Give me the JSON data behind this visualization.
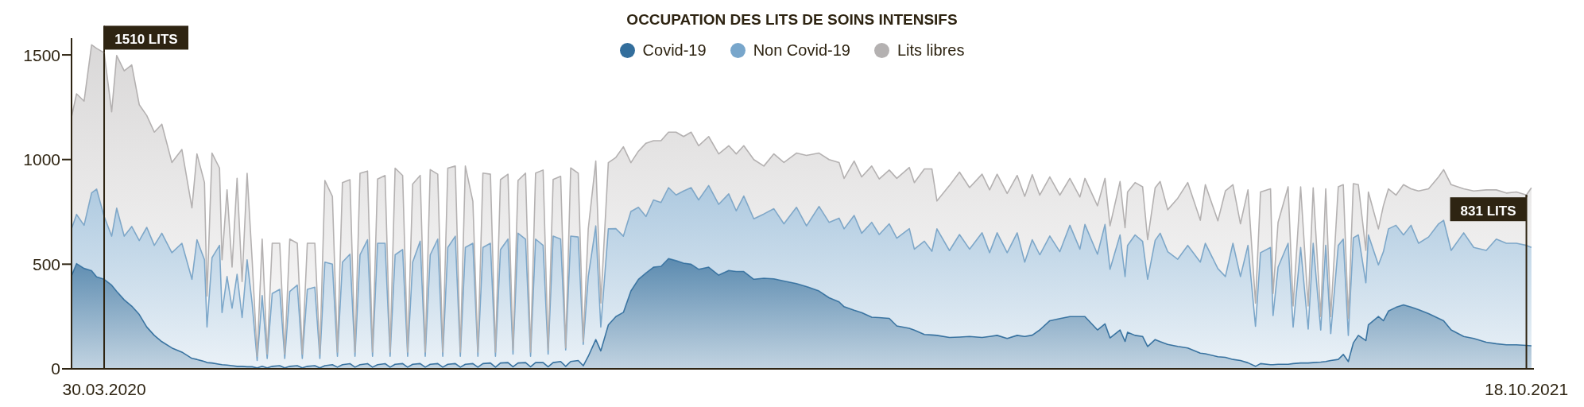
{
  "chart_data": {
    "type": "area",
    "stacked": true,
    "title": "OCCUPATION DES LITS DE SOINS INTENSIFS",
    "legend": "top",
    "xlim": [
      "2020-03-17",
      "2021-10-21"
    ],
    "xticks": [
      {
        "value": "2020-03-30",
        "label": "30.03.2020"
      },
      {
        "value": "2021-10-18",
        "label": "18.10.2021"
      }
    ],
    "ylim": [
      0,
      1580
    ],
    "yticks": [
      0,
      500,
      1000,
      1500
    ],
    "annotations": [
      {
        "text": "1510 LITS",
        "x": "2020-03-30",
        "y": 1510
      },
      {
        "text": "831 LITS",
        "x": "2021-10-18",
        "y": 831
      }
    ],
    "x": [
      "2020-03-17",
      "2020-03-19",
      "2020-03-22",
      "2020-03-25",
      "2020-03-27",
      "2020-03-30",
      "2020-04-02",
      "2020-04-04",
      "2020-04-07",
      "2020-04-10",
      "2020-04-13",
      "2020-04-16",
      "2020-04-19",
      "2020-04-22",
      "2020-04-26",
      "2020-04-30",
      "2020-05-04",
      "2020-05-06",
      "2020-05-09",
      "2020-05-10",
      "2020-05-12",
      "2020-05-15",
      "2020-05-16",
      "2020-05-18",
      "2020-05-20",
      "2020-05-22",
      "2020-05-24",
      "2020-05-26",
      "2020-05-28",
      "2020-05-30",
      "2020-06-01",
      "2020-06-03",
      "2020-06-05",
      "2020-06-08",
      "2020-06-10",
      "2020-06-12",
      "2020-06-15",
      "2020-06-17",
      "2020-06-19",
      "2020-06-22",
      "2020-06-24",
      "2020-06-26",
      "2020-06-29",
      "2020-07-01",
      "2020-07-03",
      "2020-07-06",
      "2020-07-08",
      "2020-07-10",
      "2020-07-13",
      "2020-07-15",
      "2020-07-17",
      "2020-07-20",
      "2020-07-22",
      "2020-07-24",
      "2020-07-27",
      "2020-07-29",
      "2020-07-31",
      "2020-08-03",
      "2020-08-05",
      "2020-08-07",
      "2020-08-10",
      "2020-08-12",
      "2020-08-14",
      "2020-08-17",
      "2020-08-19",
      "2020-08-21",
      "2020-08-24",
      "2020-08-26",
      "2020-08-28",
      "2020-08-31",
      "2020-09-02",
      "2020-09-04",
      "2020-09-07",
      "2020-09-09",
      "2020-09-11",
      "2020-09-14",
      "2020-09-16",
      "2020-09-18",
      "2020-09-21",
      "2020-09-23",
      "2020-09-25",
      "2020-09-28",
      "2020-09-30",
      "2020-10-02",
      "2020-10-05",
      "2020-10-07",
      "2020-10-09",
      "2020-10-12",
      "2020-10-14",
      "2020-10-17",
      "2020-10-20",
      "2020-10-23",
      "2020-10-26",
      "2020-10-29",
      "2020-11-01",
      "2020-11-04",
      "2020-11-07",
      "2020-11-10",
      "2020-11-13",
      "2020-11-16",
      "2020-11-19",
      "2020-11-22",
      "2020-11-26",
      "2020-11-30",
      "2020-12-04",
      "2020-12-07",
      "2020-12-10",
      "2020-12-14",
      "2020-12-18",
      "2020-12-22",
      "2020-12-26",
      "2020-12-31",
      "2021-01-04",
      "2021-01-09",
      "2021-01-13",
      "2021-01-17",
      "2021-01-19",
      "2021-01-23",
      "2021-01-26",
      "2021-01-30",
      "2021-02-02",
      "2021-02-06",
      "2021-02-09",
      "2021-02-14",
      "2021-02-16",
      "2021-02-20",
      "2021-02-23",
      "2021-02-25",
      "2021-03-02",
      "2021-03-06",
      "2021-03-10",
      "2021-03-15",
      "2021-03-18",
      "2021-03-21",
      "2021-03-25",
      "2021-03-29",
      "2021-04-01",
      "2021-04-04",
      "2021-04-07",
      "2021-04-11",
      "2021-04-15",
      "2021-04-19",
      "2021-04-23",
      "2021-04-25",
      "2021-04-30",
      "2021-05-03",
      "2021-05-05",
      "2021-05-09",
      "2021-05-11",
      "2021-05-12",
      "2021-05-15",
      "2021-05-18",
      "2021-05-20",
      "2021-05-23",
      "2021-05-25",
      "2021-05-28",
      "2021-06-01",
      "2021-06-05",
      "2021-06-10",
      "2021-06-12",
      "2021-06-17",
      "2021-06-20",
      "2021-06-23",
      "2021-06-26",
      "2021-06-29",
      "2021-07-02",
      "2021-07-04",
      "2021-07-08",
      "2021-07-09",
      "2021-07-11",
      "2021-07-15",
      "2021-07-17",
      "2021-07-20",
      "2021-07-23",
      "2021-07-25",
      "2021-07-28",
      "2021-07-30",
      "2021-08-01",
      "2021-08-04",
      "2021-08-06",
      "2021-08-08",
      "2021-08-10",
      "2021-08-12",
      "2021-08-15",
      "2021-08-16",
      "2021-08-20",
      "2021-08-22",
      "2021-08-24",
      "2021-08-27",
      "2021-08-30",
      "2021-09-02",
      "2021-09-05",
      "2021-09-09",
      "2021-09-13",
      "2021-09-15",
      "2021-09-18",
      "2021-09-23",
      "2021-09-27",
      "2021-10-02",
      "2021-10-06",
      "2021-10-10",
      "2021-10-14",
      "2021-10-18",
      "2021-10-20"
    ],
    "series": [
      {
        "name": "Covid-19",
        "color": "#336e9c",
        "values": [
          445,
          503,
          480,
          469,
          440,
          428,
          400,
          370,
          330,
          300,
          260,
          200,
          160,
          130,
          100,
          80,
          50,
          45,
          35,
          30,
          28,
          22,
          20,
          18,
          15,
          12,
          12,
          10,
          10,
          5,
          12,
          5,
          12,
          15,
          5,
          12,
          15,
          5,
          12,
          15,
          5,
          15,
          20,
          8,
          20,
          25,
          8,
          20,
          25,
          8,
          20,
          25,
          8,
          22,
          25,
          8,
          22,
          25,
          8,
          22,
          25,
          8,
          22,
          25,
          8,
          22,
          25,
          8,
          25,
          28,
          8,
          28,
          30,
          10,
          28,
          30,
          10,
          30,
          30,
          10,
          30,
          35,
          12,
          35,
          40,
          15,
          60,
          140,
          86,
          210,
          250,
          270,
          372,
          428,
          458,
          486,
          490,
          527,
          517,
          505,
          500,
          476,
          486,
          448,
          470,
          465,
          465,
          428,
          433,
          430,
          420,
          407,
          393,
          372,
          340,
          320,
          297,
          280,
          269,
          247,
          245,
          241,
          205,
          194,
          185,
          164,
          162,
          160,
          150,
          152,
          155,
          150,
          155,
          160,
          145,
          160,
          155,
          161,
          186,
          230,
          240,
          250,
          250,
          250,
          186,
          215,
          148,
          186,
          131,
          175,
          160,
          155,
          107,
          140,
          130,
          117,
          107,
          100,
          75,
          72,
          58,
          55,
          45,
          40,
          29,
          12,
          25,
          20,
          20,
          22,
          22,
          25,
          28,
          28,
          30,
          32,
          35,
          40,
          45,
          69,
          35,
          124,
          160,
          135,
          210,
          250,
          230,
          276,
          294,
          306,
          295,
          283,
          264,
          241,
          230,
          186,
          155,
          145,
          127,
          120,
          115,
          115,
          112,
          110
        ]
      },
      {
        "name": "Non Covid-19",
        "color": "#78a6cb",
        "values": [
          224,
          235,
          206,
          372,
          419,
          300,
          234,
          398,
          304,
          380,
          353,
          476,
          430,
          518,
          455,
          520,
          378,
          572,
          486,
          170,
          503,
          568,
          249,
          423,
          275,
          440,
          233,
          511,
          304,
          35,
          338,
          45,
          348,
          365,
          45,
          358,
          385,
          45,
          368,
          375,
          45,
          495,
          480,
          52,
          490,
          523,
          52,
          525,
          592,
          52,
          580,
          575,
          52,
          523,
          545,
          52,
          488,
          585,
          52,
          523,
          595,
          52,
          558,
          609,
          52,
          558,
          575,
          52,
          555,
          572,
          52,
          542,
          590,
          60,
          620,
          590,
          50,
          590,
          560,
          60,
          604,
          585,
          78,
          599,
          590,
          102,
          381,
          543,
          114,
          459,
          420,
          364,
          380,
          344,
          270,
          321,
          305,
          339,
          314,
          345,
          366,
          331,
          390,
          338,
          366,
          290,
          361,
          289,
          307,
          335,
          273,
          365,
          290,
          404,
          360,
          400,
          372,
          453,
          379,
          453,
          397,
          452,
          419,
          476,
          387,
          446,
          400,
          509,
          415,
          490,
          417,
          500,
          400,
          490,
          410,
          490,
          355,
          456,
          359,
          405,
          320,
          436,
          322,
          440,
          362,
          475,
          328,
          454,
          310,
          415,
          480,
          454,
          321,
          474,
          518,
          443,
          417,
          490,
          435,
          528,
          421,
          386,
          555,
          401,
          561,
          191,
          530,
          560,
          235,
          464,
          578,
          175,
          552,
          162,
          570,
          153,
          555,
          128,
          545,
          551,
          125,
          502,
          480,
          276,
          430,
          247,
          330,
          393,
          392,
          334,
          391,
          317,
          366,
          452,
          480,
          380,
          495,
          435,
          439,
          500,
          485,
          485,
          478,
          470
        ]
      },
      {
        "name": "Lits libres",
        "color": "#b4b1b1",
        "values": [
          534,
          576,
          593,
          707,
          672,
          782,
          594,
          729,
          790,
          772,
          649,
          534,
          541,
          521,
          431,
          448,
          341,
          410,
          369,
          148,
          500,
          369,
          252,
          414,
          196,
          458,
          172,
          413,
          207,
          20,
          270,
          20,
          240,
          220,
          20,
          250,
          200,
          20,
          220,
          210,
          20,
          390,
          324,
          20,
          380,
          356,
          20,
          389,
          328,
          20,
          307,
          324,
          20,
          414,
          354,
          20,
          373,
          314,
          20,
          407,
          310,
          20,
          379,
          335,
          20,
          389,
          200,
          20,
          355,
          330,
          20,
          334,
          310,
          20,
          252,
          315,
          20,
          315,
          360,
          20,
          271,
          300,
          10,
          326,
          305,
          13,
          228,
          310,
          114,
          316,
          340,
          427,
          233,
          268,
          350,
          283,
          295,
          265,
          300,
          260,
          265,
          259,
          234,
          241,
          230,
          272,
          240,
          283,
          229,
          262,
          293,
          259,
          337,
          255,
          300,
          266,
          241,
          260,
          269,
          269,
          265,
          257,
          286,
          292,
          318,
          345,
          393,
          133,
          311,
          298,
          294,
          280,
          300,
          280,
          283,
          274,
          314,
          311,
          285,
          282,
          270,
          224,
          249,
          220,
          231,
          220,
          207,
          255,
          233,
          255,
          250,
          261,
          189,
          251,
          247,
          200,
          291,
          300,
          200,
          280,
          228,
          409,
          280,
          252,
          265,
          111,
          290,
          280,
          105,
          214,
          270,
          100,
          290,
          110,
          265,
          65,
          270,
          82,
          280,
          260,
          80,
          259,
          240,
          155,
          205,
          172,
          220,
          191,
          144,
          240,
          174,
          250,
          230,
          224,
          242,
          314,
          210,
          270,
          289,
          235,
          240,
          245,
          241,
          285
        ]
      }
    ]
  }
}
